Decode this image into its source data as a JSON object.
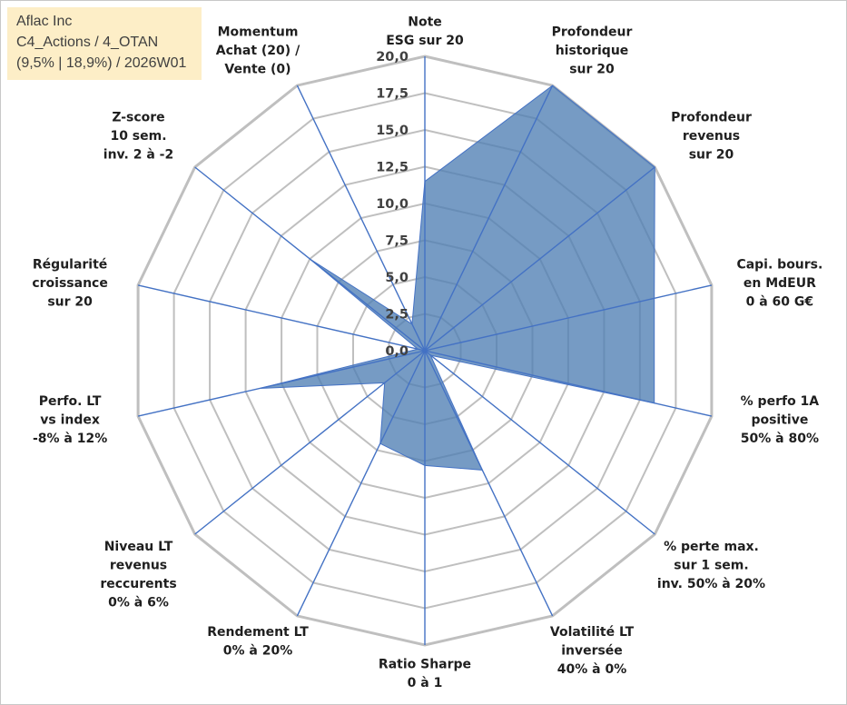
{
  "title_box": {
    "line1": "Aflac Inc",
    "line2": "C4_Actions / 4_OTAN",
    "line3": "(9,5% | 18,9%) / 2026W01"
  },
  "chart_data": {
    "type": "radar",
    "title": "Aflac Inc",
    "rmin": 0,
    "rmax": 20,
    "grid_step": 2.5,
    "ticks": [
      "0,0",
      "2,5",
      "5,0",
      "7,5",
      "10,0",
      "12,5",
      "15,0",
      "17,5",
      "20,0"
    ],
    "axes": [
      {
        "lines": [
          "Note",
          "ESG sur 20"
        ],
        "value": 11.5
      },
      {
        "lines": [
          "Profondeur",
          "historique",
          "sur 20"
        ],
        "value": 20.0
      },
      {
        "lines": [
          "Profondeur",
          "revenus",
          "sur 20"
        ],
        "value": 20.0
      },
      {
        "lines": [
          "Capi. bours.",
          "en MdEUR",
          "0 à 60 G€"
        ],
        "value": 16.0
      },
      {
        "lines": [
          "% perfo 1A",
          "positive",
          "50% à 80%"
        ],
        "value": 16.0
      },
      {
        "lines": [
          "% perte max.",
          "sur 1 sem.",
          "inv. 50% à 20%"
        ],
        "value": 0.5
      },
      {
        "lines": [
          "Volatilité LT",
          "inversée",
          "40% à 0%"
        ],
        "value": 9.0
      },
      {
        "lines": [
          "Ratio Sharpe",
          "0 à 1"
        ],
        "value": 7.8
      },
      {
        "lines": [
          "Rendement LT",
          "0% à 20%"
        ],
        "value": 7.0
      },
      {
        "lines": [
          "Niveau LT",
          "revenus",
          "reccurents",
          "0% à 6%"
        ],
        "value": 3.5
      },
      {
        "lines": [
          "Perfo. LT",
          "vs index",
          "-8% à 12%"
        ],
        "value": 11.5
      },
      {
        "lines": [
          "Régularité",
          "croissance",
          "sur 20"
        ],
        "value": 0.5
      },
      {
        "lines": [
          "Z-score",
          "10 sem.",
          "inv. 2 à -2"
        ],
        "value": 10.0
      },
      {
        "lines": [
          "Momentum",
          "Achat (20) /",
          "Vente (0)"
        ],
        "value": 2.0
      }
    ],
    "colors": {
      "fill": "#4f7fb4",
      "edge": "#4472c4",
      "grid": "#bfbfbf"
    }
  }
}
